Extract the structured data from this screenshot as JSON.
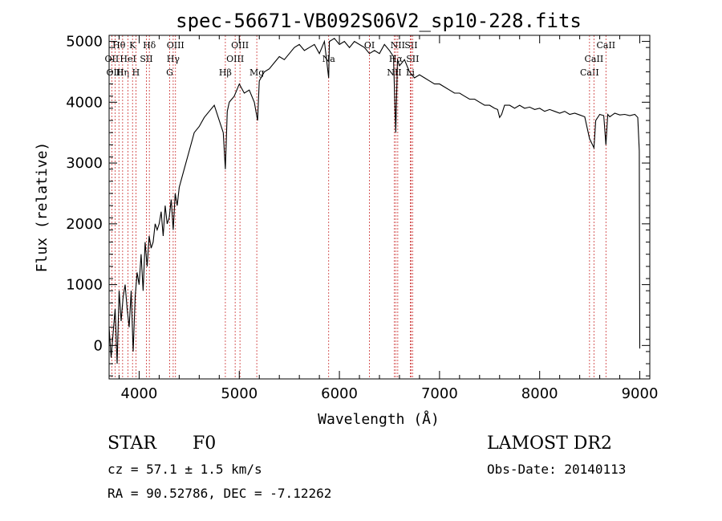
{
  "chart_data": {
    "type": "line",
    "title": "spec-56671-VB092S06V2_sp10-228.fits",
    "xlabel": "Wavelength (Å)",
    "ylabel": "Flux (relative)",
    "xlim": [
      3700,
      9100
    ],
    "ylim": [
      -550,
      5100
    ],
    "xticks": [
      4000,
      5000,
      6000,
      7000,
      8000,
      9000
    ],
    "yticks": [
      0,
      1000,
      2000,
      3000,
      4000,
      5000
    ],
    "grid": false,
    "series": [
      {
        "x": [
          3700,
          3720,
          3740,
          3760,
          3780,
          3800,
          3820,
          3840,
          3860,
          3880,
          3900,
          3920,
          3940,
          3960,
          3980,
          4000,
          4020,
          4040,
          4060,
          4080,
          4100,
          4120,
          4140,
          4160,
          4180,
          4200,
          4220,
          4240,
          4260,
          4280,
          4300,
          4320,
          4340,
          4360,
          4380,
          4400,
          4450,
          4500,
          4550,
          4600,
          4650,
          4700,
          4750,
          4800,
          4840,
          4861,
          4880,
          4900,
          4950,
          5000,
          5050,
          5100,
          5150,
          5183,
          5200,
          5250,
          5300,
          5350,
          5400,
          5450,
          5500,
          5550,
          5600,
          5650,
          5700,
          5750,
          5800,
          5850,
          5893,
          5900,
          5950,
          6000,
          6050,
          6100,
          6150,
          6200,
          6250,
          6300,
          6350,
          6400,
          6450,
          6500,
          6540,
          6563,
          6580,
          6600,
          6650,
          6700,
          6750,
          6800,
          6850,
          6900,
          6950,
          7000,
          7050,
          7100,
          7150,
          7200,
          7250,
          7300,
          7350,
          7400,
          7450,
          7500,
          7550,
          7580,
          7600,
          7620,
          7650,
          7700,
          7750,
          7800,
          7850,
          7900,
          7950,
          8000,
          8050,
          8100,
          8150,
          8200,
          8250,
          8300,
          8350,
          8400,
          8450,
          8498,
          8542,
          8560,
          8600,
          8640,
          8662,
          8680,
          8700,
          8750,
          8800,
          8850,
          8900,
          8950,
          8980,
          8995,
          9000
        ],
        "y": [
          300,
          -200,
          200,
          600,
          -300,
          900,
          400,
          800,
          1000,
          600,
          300,
          900,
          -100,
          800,
          1200,
          1000,
          1500,
          900,
          1700,
          1300,
          1800,
          1600,
          1700,
          2000,
          1900,
          2000,
          2200,
          1800,
          2300,
          2000,
          2100,
          2400,
          1900,
          2500,
          2300,
          2600,
          2900,
          3200,
          3500,
          3600,
          3750,
          3850,
          3950,
          3700,
          3500,
          2900,
          3850,
          4000,
          4100,
          4300,
          4150,
          4200,
          4000,
          3700,
          4350,
          4500,
          4550,
          4650,
          4750,
          4700,
          4800,
          4900,
          4950,
          4850,
          4900,
          4950,
          4800,
          5000,
          4400,
          5000,
          5050,
          4950,
          5000,
          4900,
          5000,
          4950,
          4900,
          4800,
          4850,
          4800,
          4950,
          4850,
          4750,
          3500,
          4700,
          4600,
          4700,
          4500,
          4400,
          4450,
          4400,
          4350,
          4300,
          4300,
          4250,
          4200,
          4150,
          4150,
          4100,
          4050,
          4050,
          4000,
          3950,
          3950,
          3900,
          3880,
          3750,
          3800,
          3950,
          3950,
          3900,
          3950,
          3900,
          3920,
          3880,
          3900,
          3850,
          3880,
          3850,
          3820,
          3850,
          3800,
          3820,
          3790,
          3760,
          3400,
          3250,
          3700,
          3800,
          3780,
          3300,
          3800,
          3760,
          3820,
          3790,
          3800,
          3780,
          3800,
          3750,
          3200,
          -50
        ]
      }
    ],
    "lines": [
      {
        "label": "Hθ",
        "x": 3798,
        "row": 0
      },
      {
        "label": "OII",
        "x": 3727,
        "row": 1
      },
      {
        "label": "OIII",
        "x": 3760,
        "row": 2
      },
      {
        "label": "Hη",
        "x": 3835,
        "row": 2
      },
      {
        "label": "HeI",
        "x": 3889,
        "row": 1
      },
      {
        "label": "K",
        "x": 3934,
        "row": 0
      },
      {
        "label": "H",
        "x": 3968,
        "row": 2
      },
      {
        "label": "SII",
        "x": 4072,
        "row": 1
      },
      {
        "label": "Hδ",
        "x": 4102,
        "row": 0
      },
      {
        "label": "G",
        "x": 4305,
        "row": 2
      },
      {
        "label": "Hγ",
        "x": 4340,
        "row": 1
      },
      {
        "label": "OIII",
        "x": 4363,
        "row": 0
      },
      {
        "label": "Hβ",
        "x": 4861,
        "row": 2
      },
      {
        "label": "OIII",
        "x": 4959,
        "row": 1
      },
      {
        "label": "OIII",
        "x": 5007,
        "row": 0
      },
      {
        "label": "Mg",
        "x": 5175,
        "row": 2
      },
      {
        "label": "Na",
        "x": 5893,
        "row": 1
      },
      {
        "label": "OI",
        "x": 6300,
        "row": 0
      },
      {
        "label": "NII",
        "x": 6548,
        "row": 2
      },
      {
        "label": "Hα",
        "x": 6563,
        "row": 1
      },
      {
        "label": "NII",
        "x": 6583,
        "row": 0
      },
      {
        "label": "SII",
        "x": 6716,
        "row": 0
      },
      {
        "label": "SII",
        "x": 6731,
        "row": 1
      },
      {
        "label": "Li",
        "x": 6708,
        "row": 2
      },
      {
        "label": "CaII",
        "x": 8498,
        "row": 2
      },
      {
        "label": "CaII",
        "x": 8542,
        "row": 1
      },
      {
        "label": "CaII",
        "x": 8662,
        "row": 0
      }
    ]
  },
  "info": {
    "class": "STAR",
    "subclass": "F0",
    "survey": "LAMOST DR2",
    "cz": "cz = 57.1 ± 1.5 km/s",
    "obs_date": "Obs-Date: 20140113",
    "coords": "RA =  90.52786, DEC =  -7.12262"
  }
}
